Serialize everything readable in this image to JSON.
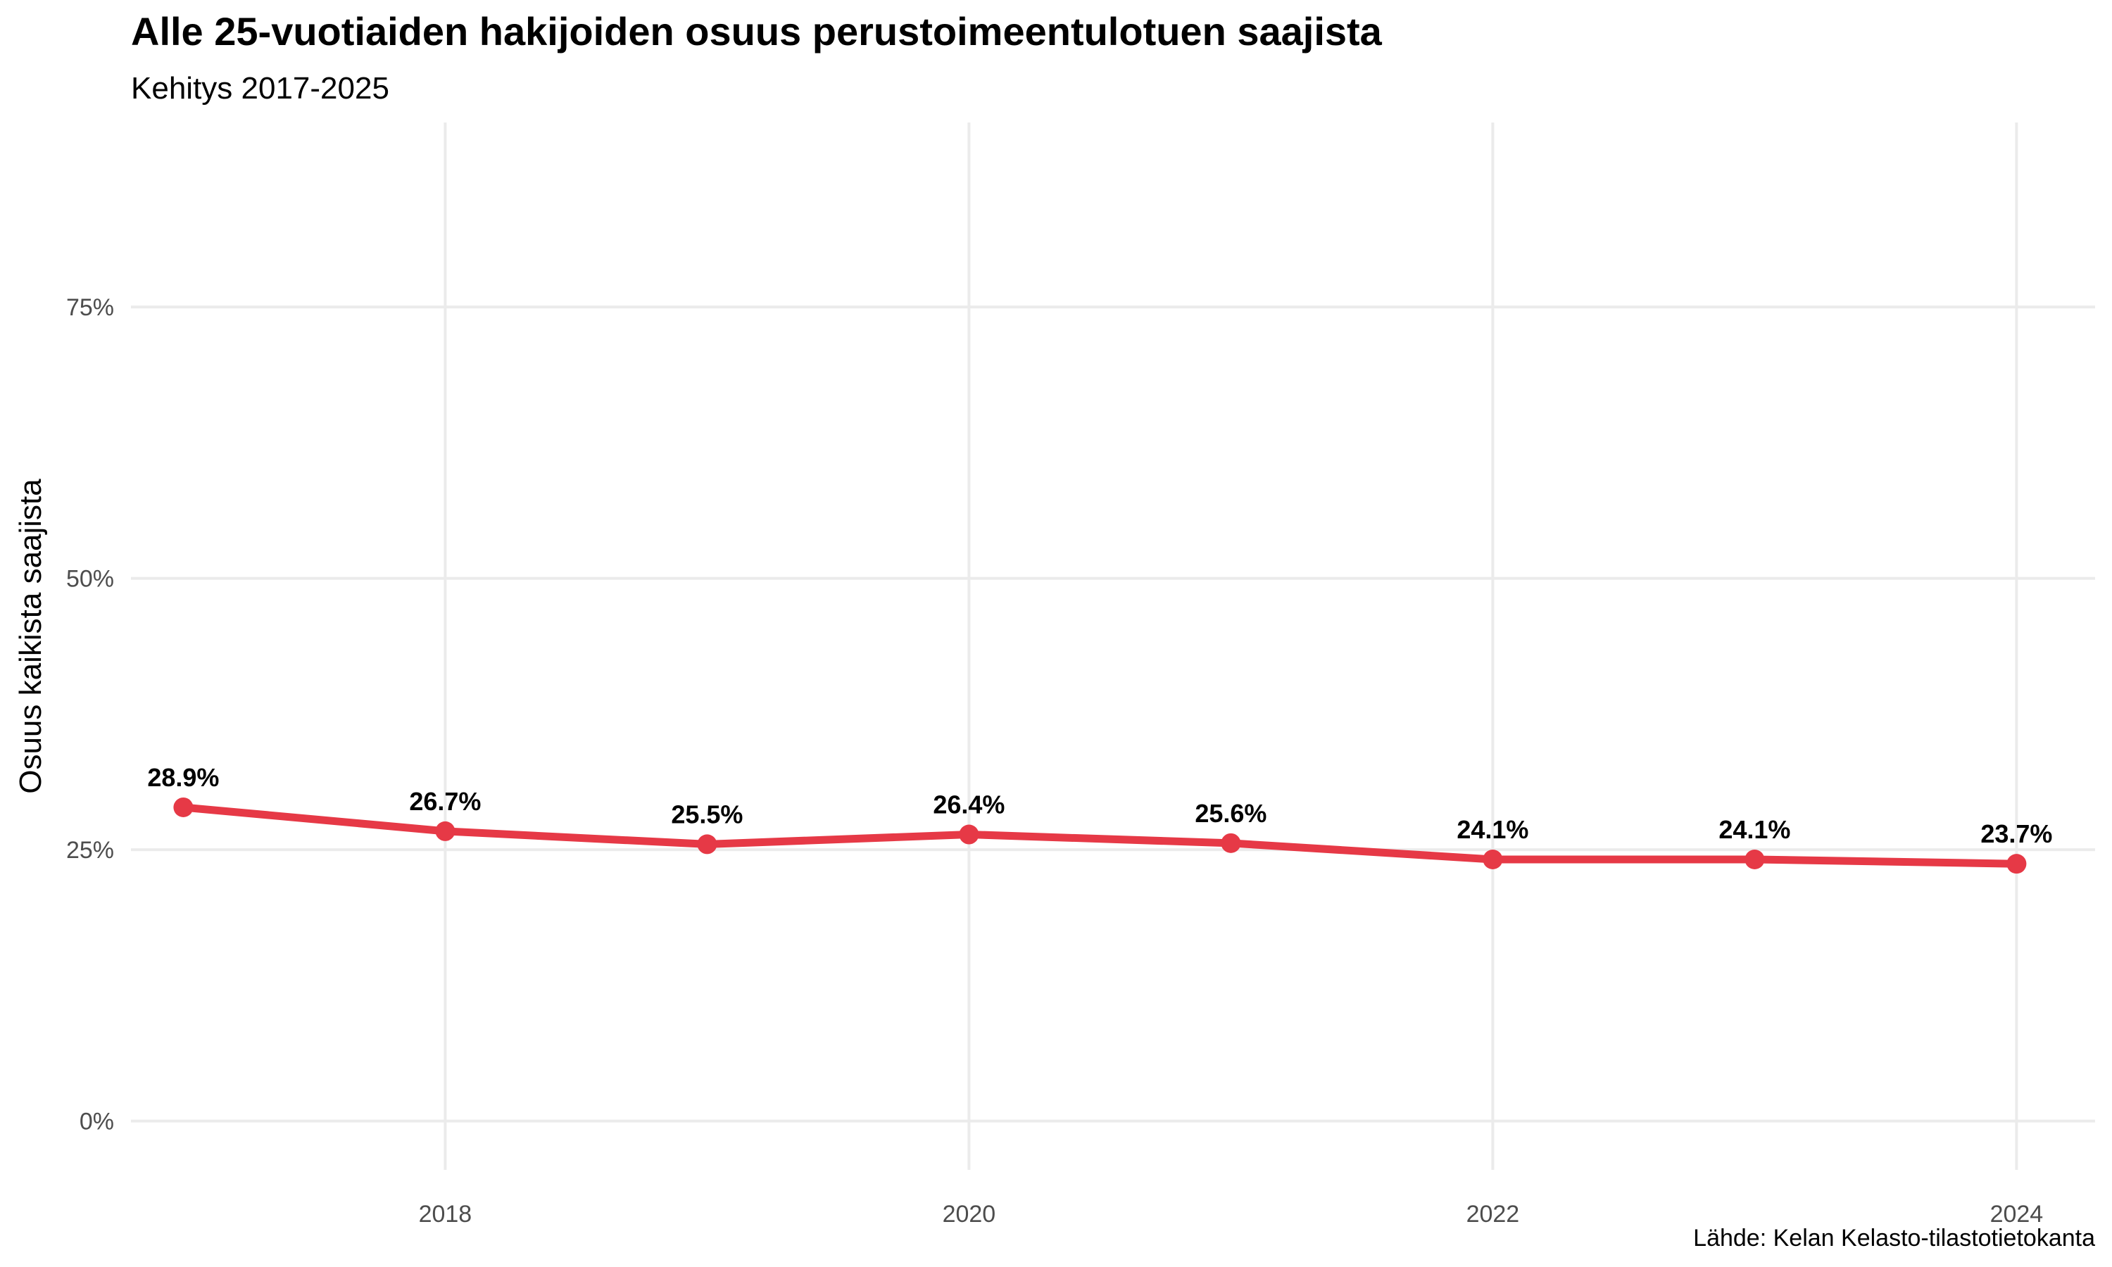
{
  "chart_data": {
    "type": "line",
    "title": "Alle 25-vuotiaiden hakijoiden osuus perustoimeentulotuen saajista",
    "subtitle": "Kehitys 2017-2025",
    "xlabel": "",
    "ylabel": "Osuus kaikista saajista",
    "caption": "Lähde: Kelan Kelasto-tilastotietokanta",
    "x": [
      2017,
      2018,
      2019,
      2020,
      2021,
      2022,
      2023,
      2024
    ],
    "series": [
      {
        "values": [
          28.9,
          26.7,
          25.5,
          26.4,
          25.6,
          24.1,
          24.1,
          23.7
        ],
        "labels": [
          "28.9%",
          "26.7%",
          "25.5%",
          "26.4%",
          "25.6%",
          "24.1%",
          "24.1%",
          "23.7%"
        ],
        "color": "#e63946"
      }
    ],
    "xticks": [
      2018,
      2020,
      2022,
      2024
    ],
    "xtick_labels": [
      "2018",
      "2020",
      "2022",
      "2024"
    ],
    "yticks": [
      0,
      25,
      50,
      75
    ],
    "ytick_labels": [
      "0%",
      "25%",
      "50%",
      "75%"
    ],
    "xlim": [
      2016.8,
      2024.3
    ],
    "ylim": [
      -4.5,
      92.0
    ],
    "grid": true,
    "legend": "none"
  }
}
